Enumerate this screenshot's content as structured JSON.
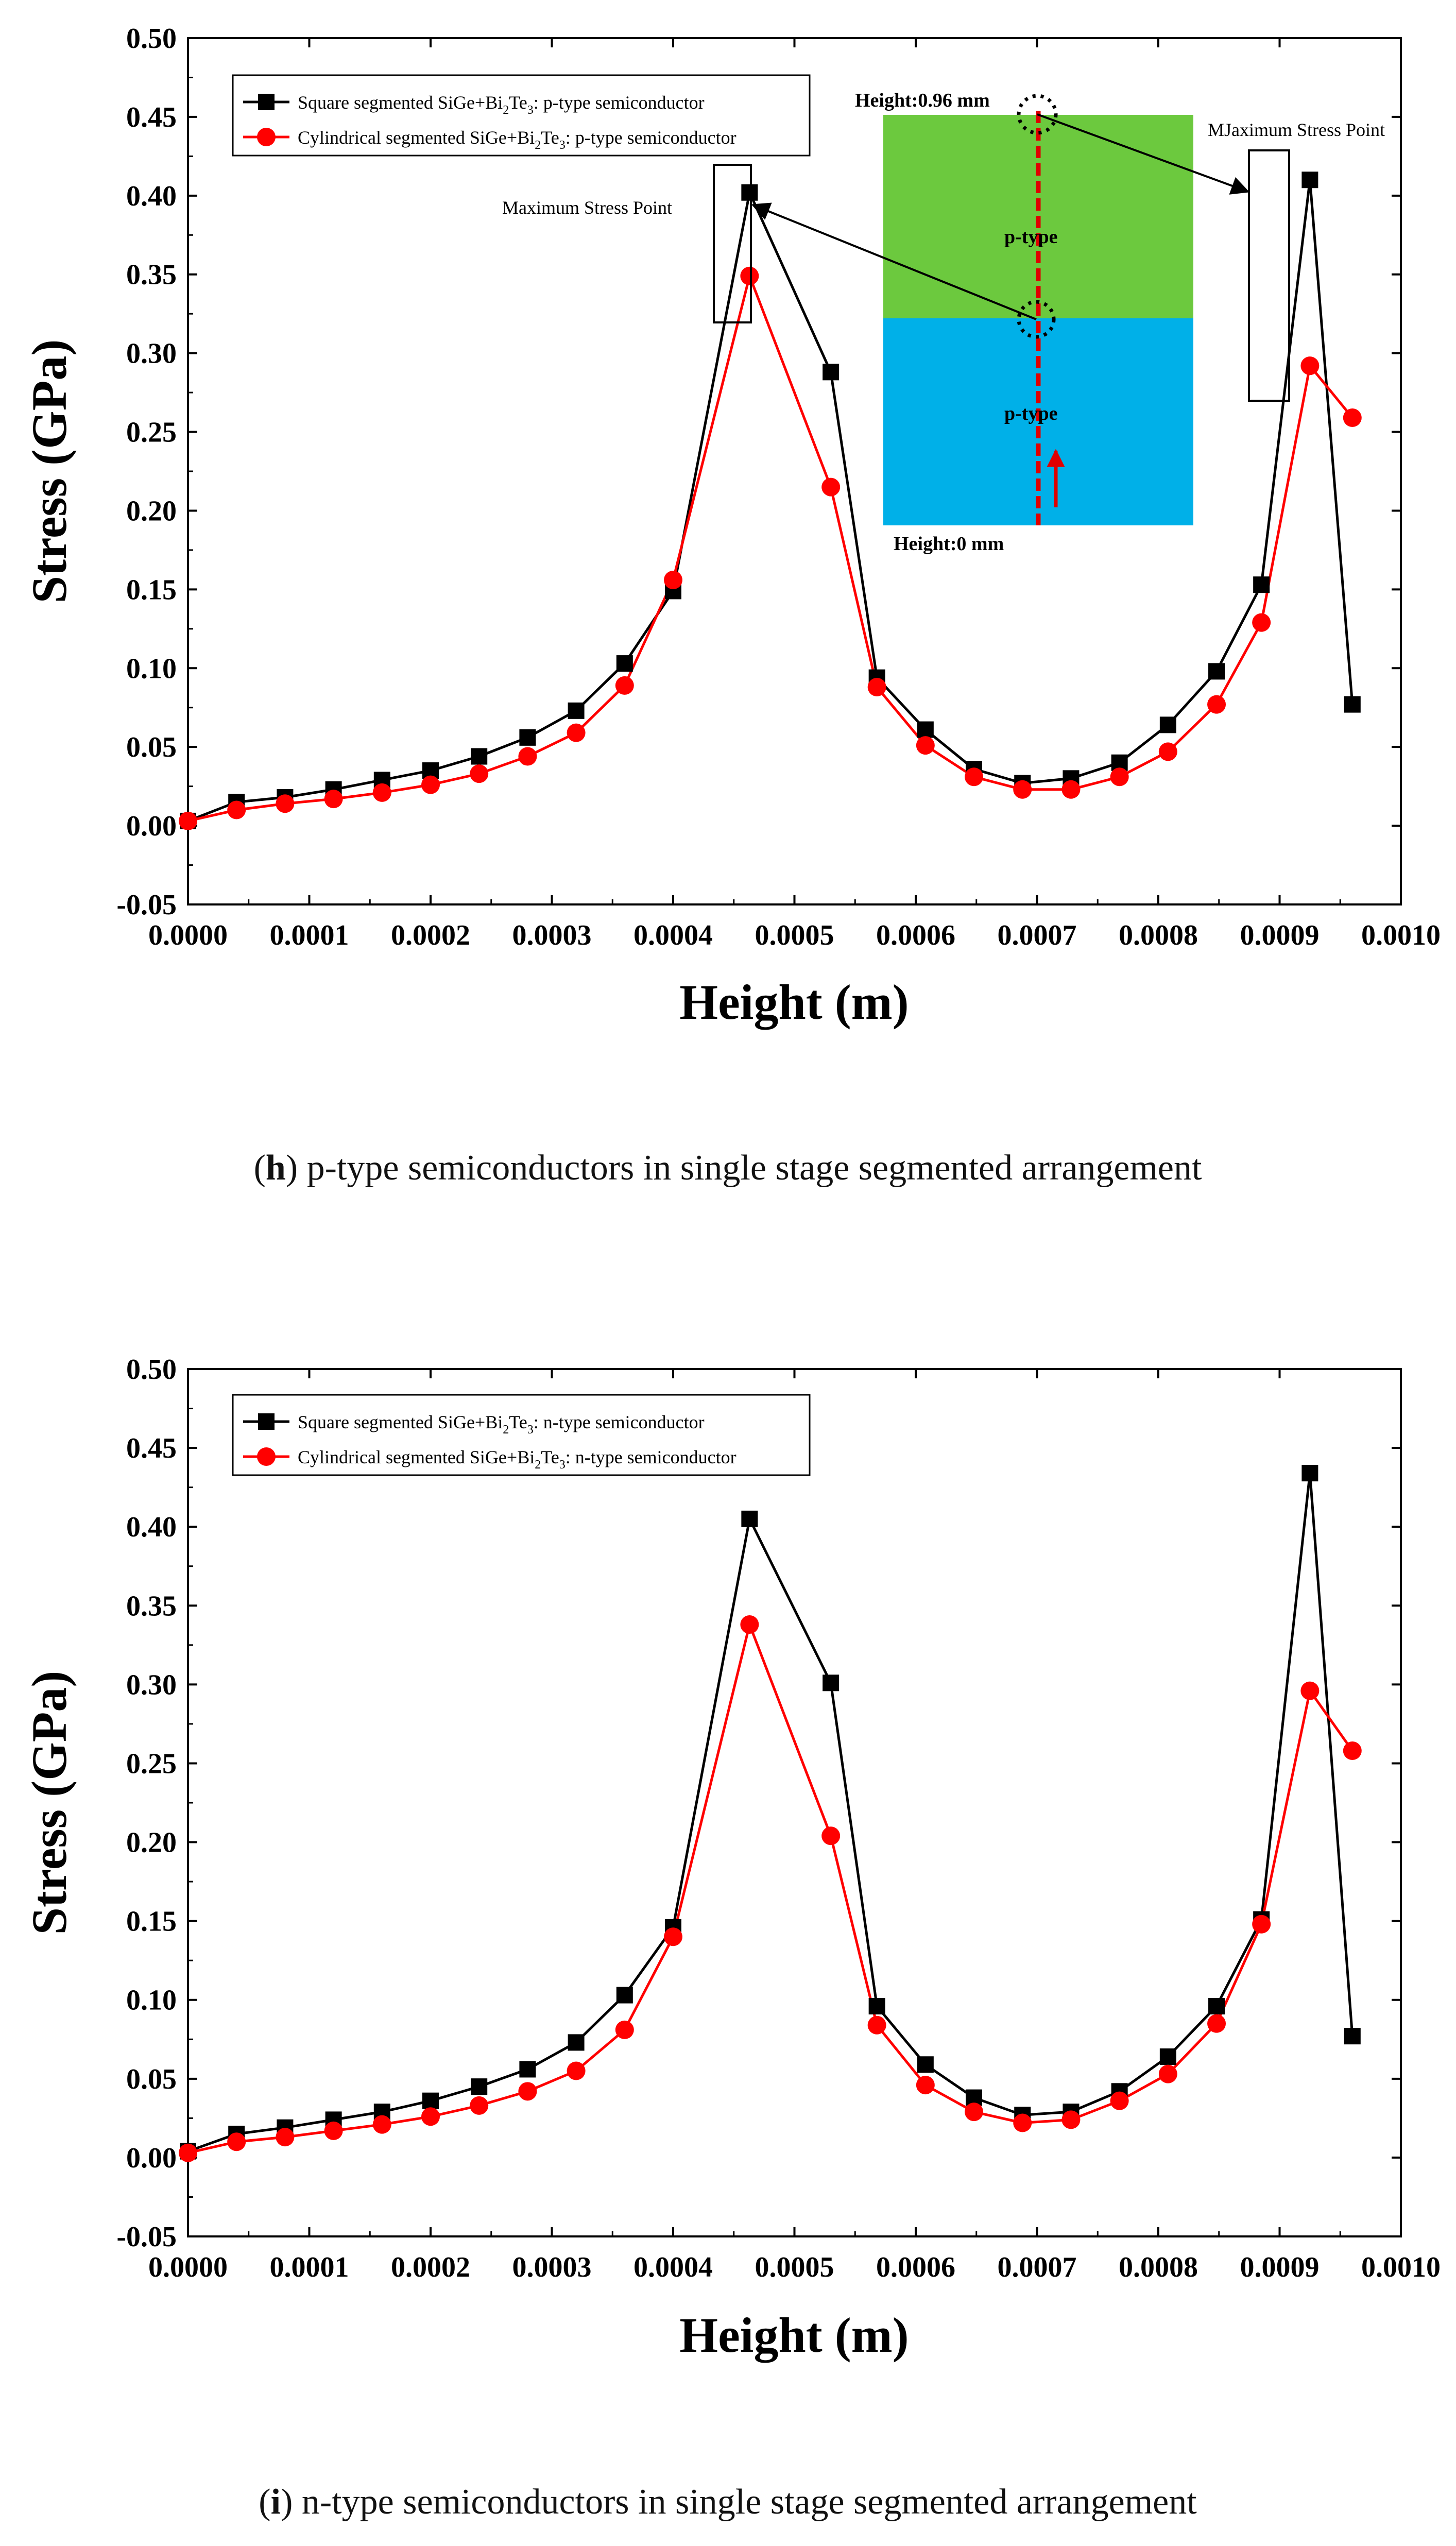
{
  "chart_data": [
    {
      "type": "line",
      "caption_letter": "h",
      "caption_text": " p-type semiconductors in single stage segmented arrangement",
      "xlabel": "Height (m)",
      "ylabel": "Stress (GPa)",
      "xlim": [
        0,
        0.001
      ],
      "ylim": [
        -0.05,
        0.5
      ],
      "xticks": [
        "0.0000",
        "0.0001",
        "0.0002",
        "0.0003",
        "0.0004",
        "0.0005",
        "0.0006",
        "0.0007",
        "0.0008",
        "0.0009",
        "0.0010"
      ],
      "yticks": [
        "-0.05",
        "0.00",
        "0.05",
        "0.10",
        "0.15",
        "0.20",
        "0.25",
        "0.30",
        "0.35",
        "0.40",
        "0.45",
        "0.50"
      ],
      "legend": [
        {
          "pre": "Square segmented SiGe+Bi",
          "s1": "2",
          "mid": "Te",
          "s2": "3",
          "post": ": p-type semiconductor"
        },
        {
          "pre": "Cylindrical segmented SiGe+Bi",
          "s1": "2",
          "mid": "Te",
          "s2": "3",
          "post": ": p-type semiconductor"
        }
      ],
      "series": [
        {
          "name": "Square segmented SiGe+Bi2Te3: p-type semiconductor",
          "color": "#000000",
          "marker": "square",
          "x": [
            0.0,
            4e-05,
            8e-05,
            0.00012,
            0.00016,
            0.0002,
            0.00024,
            0.00028,
            0.00032,
            0.00036,
            0.0004,
            0.000463,
            0.00053,
            0.000568,
            0.000608,
            0.000648,
            0.000688,
            0.000728,
            0.000768,
            0.000808,
            0.000848,
            0.000885,
            0.000925,
            0.00096
          ],
          "y": [
            0.003,
            0.015,
            0.018,
            0.023,
            0.029,
            0.035,
            0.044,
            0.056,
            0.073,
            0.103,
            0.149,
            0.402,
            0.288,
            0.094,
            0.061,
            0.036,
            0.027,
            0.03,
            0.04,
            0.064,
            0.098,
            0.153,
            0.41,
            0.077
          ]
        },
        {
          "name": "Cylindrical segmented SiGe+Bi2Te3: p-type semiconductor",
          "color": "#ff0000",
          "marker": "circle",
          "x": [
            0.0,
            4e-05,
            8e-05,
            0.00012,
            0.00016,
            0.0002,
            0.00024,
            0.00028,
            0.00032,
            0.00036,
            0.0004,
            0.000463,
            0.00053,
            0.000568,
            0.000608,
            0.000648,
            0.000688,
            0.000728,
            0.000768,
            0.000808,
            0.000848,
            0.000885,
            0.000925,
            0.00096
          ],
          "y": [
            0.003,
            0.01,
            0.014,
            0.017,
            0.021,
            0.026,
            0.033,
            0.044,
            0.059,
            0.089,
            0.156,
            0.349,
            0.215,
            0.088,
            0.051,
            0.031,
            0.023,
            0.023,
            0.031,
            0.047,
            0.077,
            0.129,
            0.292,
            0.259
          ]
        }
      ],
      "annotations": {
        "max_stress_left": "Maximum Stress Point",
        "max_stress_right": "MJaximum Stress Point",
        "inset_height_top": "Height:0.96 mm",
        "inset_height_bottom": "Height:0 mm",
        "inset_label_top": "p-type",
        "inset_label_bottom": "p-type",
        "inset_top_color": "#6cc93e",
        "inset_bottom_color": "#00b0e8"
      }
    },
    {
      "type": "line",
      "caption_letter": "i",
      "caption_text": " n-type semiconductors in single stage segmented arrangement",
      "xlabel": "Height (m)",
      "ylabel": "Stress (GPa)",
      "xlim": [
        0,
        0.001
      ],
      "ylim": [
        -0.05,
        0.5
      ],
      "xticks": [
        "0.0000",
        "0.0001",
        "0.0002",
        "0.0003",
        "0.0004",
        "0.0005",
        "0.0006",
        "0.0007",
        "0.0008",
        "0.0009",
        "0.0010"
      ],
      "yticks": [
        "-0.05",
        "0.00",
        "0.05",
        "0.10",
        "0.15",
        "0.20",
        "0.25",
        "0.30",
        "0.35",
        "0.40",
        "0.45",
        "0.50"
      ],
      "legend": [
        {
          "pre": "Square segmented SiGe+Bi",
          "s1": "2",
          "mid": "Te",
          "s2": "3",
          "post": ": n-type semiconductor"
        },
        {
          "pre": "Cylindrical segmented SiGe+Bi",
          "s1": "2",
          "mid": "Te",
          "s2": "3",
          "post": ": n-type semiconductor"
        }
      ],
      "series": [
        {
          "name": "Square segmented SiGe+Bi2Te3: n-type semiconductor",
          "color": "#000000",
          "marker": "square",
          "x": [
            0.0,
            4e-05,
            8e-05,
            0.00012,
            0.00016,
            0.0002,
            0.00024,
            0.00028,
            0.00032,
            0.00036,
            0.0004,
            0.000463,
            0.00053,
            0.000568,
            0.000608,
            0.000648,
            0.000688,
            0.000728,
            0.000768,
            0.000808,
            0.000848,
            0.000885,
            0.000925,
            0.00096
          ],
          "y": [
            0.004,
            0.015,
            0.019,
            0.024,
            0.029,
            0.036,
            0.045,
            0.056,
            0.073,
            0.103,
            0.146,
            0.405,
            0.301,
            0.096,
            0.059,
            0.038,
            0.027,
            0.029,
            0.042,
            0.064,
            0.096,
            0.151,
            0.434,
            0.077
          ]
        },
        {
          "name": "Cylindrical segmented SiGe+Bi2Te3: n-type semiconductor",
          "color": "#ff0000",
          "marker": "circle",
          "x": [
            0.0,
            4e-05,
            8e-05,
            0.00012,
            0.00016,
            0.0002,
            0.00024,
            0.00028,
            0.00032,
            0.00036,
            0.0004,
            0.000463,
            0.00053,
            0.000568,
            0.000608,
            0.000648,
            0.000688,
            0.000728,
            0.000768,
            0.000808,
            0.000848,
            0.000885,
            0.000925,
            0.00096
          ],
          "y": [
            0.003,
            0.01,
            0.013,
            0.017,
            0.021,
            0.026,
            0.033,
            0.042,
            0.055,
            0.081,
            0.14,
            0.338,
            0.204,
            0.084,
            0.046,
            0.029,
            0.022,
            0.024,
            0.036,
            0.053,
            0.085,
            0.148,
            0.296,
            0.258
          ]
        }
      ]
    }
  ]
}
